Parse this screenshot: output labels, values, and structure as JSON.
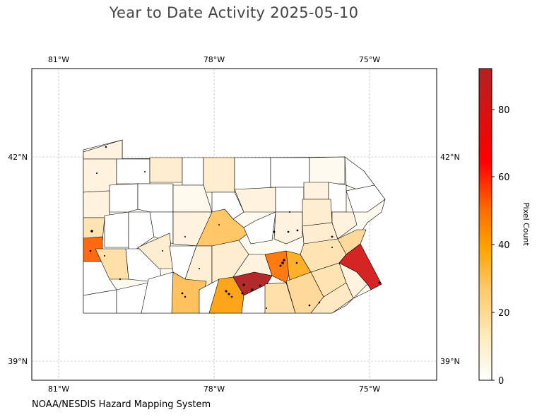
{
  "header": {
    "title": "Year to Date Activity 2025-05-10"
  },
  "footer": {
    "credit": "NOAA/NESDIS Hazard Mapping System"
  },
  "map": {
    "longitude_ticks": [
      "81°W",
      "78°W",
      "75°W"
    ],
    "latitude_ticks": [
      "42°N",
      "39°N"
    ],
    "region": "Pennsylvania counties",
    "colors": {
      "border": "#000000",
      "grid": "#999999",
      "hotspot_point": "#000000"
    }
  },
  "colorbar": {
    "label": "Pixel Count",
    "ticks": [
      "0",
      "20",
      "40",
      "60",
      "80"
    ],
    "range": [
      0,
      92
    ],
    "colormap": [
      "#ffffff",
      "#ffe9b5",
      "#ffc766",
      "#ffa500",
      "#ff6a00",
      "#ff0000",
      "#b22222"
    ]
  }
}
